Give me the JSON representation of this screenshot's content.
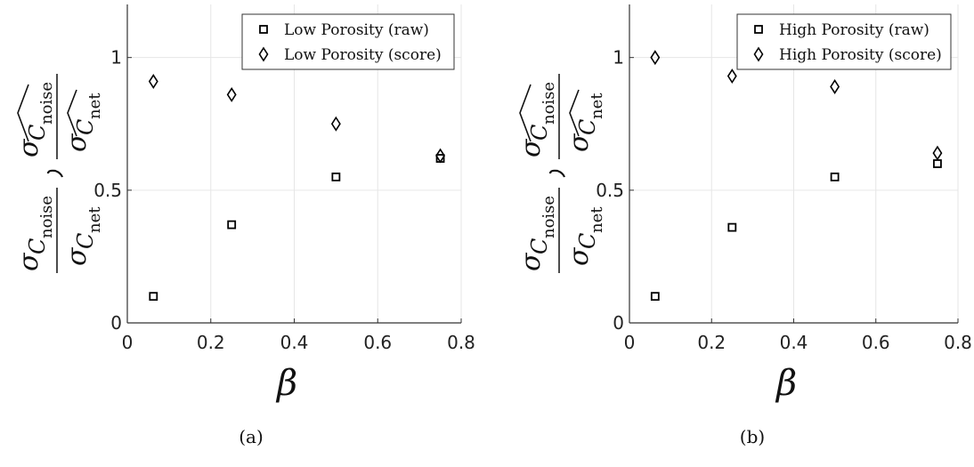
{
  "chart_data": [
    {
      "type": "scatter",
      "panel": "a",
      "caption": "(a)",
      "xlabel": "β",
      "ylabel_parts": {
        "sym": "σ",
        "noise": "noise",
        "net": "net",
        "C": "C"
      },
      "xlim": [
        0,
        0.8
      ],
      "ylim": [
        0,
        1.2
      ],
      "xticks": [
        0,
        0.2,
        0.4,
        0.6,
        0.8
      ],
      "xtick_labels": [
        "0",
        "0.2",
        "0.4",
        "0.6",
        "0.8"
      ],
      "yticks": [
        0,
        0.5,
        1
      ],
      "ytick_labels": [
        "0",
        "0.5",
        "1"
      ],
      "grid": true,
      "legend_position": "top-right",
      "series": [
        {
          "name": "Low Porosity (raw)",
          "marker": "square",
          "x": [
            0.0625,
            0.25,
            0.5,
            0.75
          ],
          "y": [
            0.1,
            0.37,
            0.55,
            0.62
          ]
        },
        {
          "name": "Low Porosity (score)",
          "marker": "diamond",
          "x": [
            0.0625,
            0.25,
            0.5,
            0.75
          ],
          "y": [
            0.91,
            0.86,
            0.75,
            0.63
          ]
        }
      ]
    },
    {
      "type": "scatter",
      "panel": "b",
      "caption": "(b)",
      "xlabel": "β",
      "ylabel_parts": {
        "sym": "σ",
        "noise": "noise",
        "net": "net",
        "C": "C"
      },
      "xlim": [
        0,
        0.8
      ],
      "ylim": [
        0,
        1.2
      ],
      "xticks": [
        0,
        0.2,
        0.4,
        0.6,
        0.8
      ],
      "xtick_labels": [
        "0",
        "0.2",
        "0.4",
        "0.6",
        "0.8"
      ],
      "yticks": [
        0,
        0.5,
        1
      ],
      "ytick_labels": [
        "0",
        "0.5",
        "1"
      ],
      "grid": true,
      "legend_position": "top-right",
      "series": [
        {
          "name": "High Porosity (raw)",
          "marker": "square",
          "x": [
            0.0625,
            0.25,
            0.5,
            0.75
          ],
          "y": [
            0.1,
            0.36,
            0.55,
            0.6
          ]
        },
        {
          "name": "High Porosity (score)",
          "marker": "diamond",
          "x": [
            0.0625,
            0.25,
            0.5,
            0.75
          ],
          "y": [
            1.0,
            0.93,
            0.89,
            0.64
          ]
        }
      ]
    }
  ]
}
